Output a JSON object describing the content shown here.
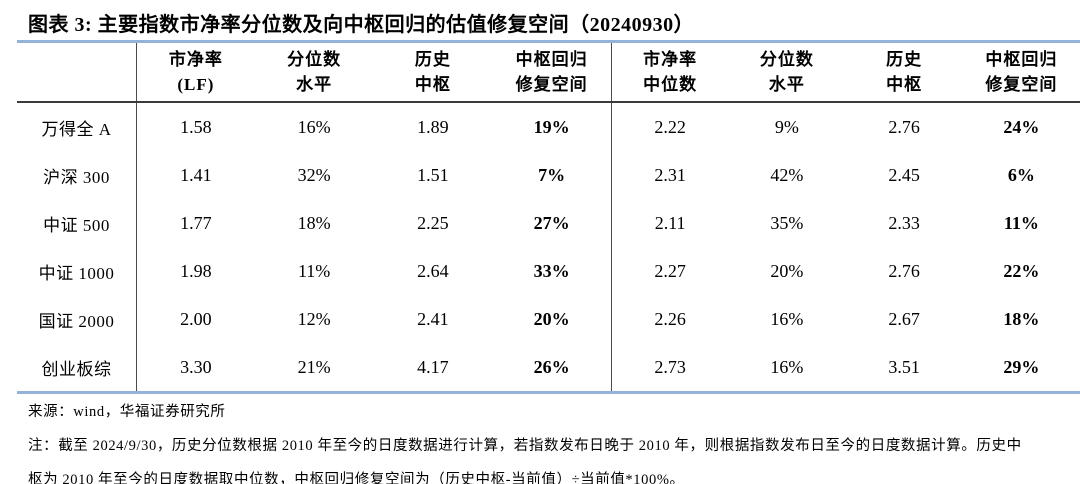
{
  "title": "图表 3: 主要指数市净率分位数及向中枢回归的估值修复空间（20240930）",
  "table": {
    "columns": [
      {
        "line1": "市净率",
        "line2": "(LF)"
      },
      {
        "line1": "分位数",
        "line2": "水平"
      },
      {
        "line1": "历史",
        "line2": "中枢"
      },
      {
        "line1": "中枢回归",
        "line2": "修复空间"
      },
      {
        "line1": "市净率",
        "line2": "中位数"
      },
      {
        "line1": "分位数",
        "line2": "水平"
      },
      {
        "line1": "历史",
        "line2": "中枢"
      },
      {
        "line1": "中枢回归",
        "line2": "修复空间"
      }
    ],
    "rows": [
      {
        "label": "万得全 A",
        "values": [
          "1.58",
          "16%",
          "1.89",
          "19%",
          "2.22",
          "9%",
          "2.76",
          "24%"
        ]
      },
      {
        "label": "沪深 300",
        "values": [
          "1.41",
          "32%",
          "1.51",
          "7%",
          "2.31",
          "42%",
          "2.45",
          "6%"
        ]
      },
      {
        "label": "中证 500",
        "values": [
          "1.77",
          "18%",
          "2.25",
          "27%",
          "2.11",
          "35%",
          "2.33",
          "11%"
        ]
      },
      {
        "label": "中证 1000",
        "values": [
          "1.98",
          "11%",
          "2.64",
          "33%",
          "2.27",
          "20%",
          "2.76",
          "22%"
        ]
      },
      {
        "label": "国证 2000",
        "values": [
          "2.00",
          "12%",
          "2.41",
          "20%",
          "2.26",
          "16%",
          "2.67",
          "18%"
        ]
      },
      {
        "label": "创业板综",
        "values": [
          "3.30",
          "21%",
          "4.17",
          "26%",
          "2.73",
          "16%",
          "3.51",
          "29%"
        ]
      }
    ]
  },
  "footer": {
    "source": "来源：wind，华福证券研究所",
    "note_line1": "注：截至 2024/9/30，历史分位数根据 2010 年至今的日度数据进行计算，若指数发布日晚于 2010 年，则根据指数发布日至今的日度数据计算。历史中",
    "note_line2": "枢为 2010 年至今的日度数据取中位数，中枢回归修复空间为（历史中枢-当前值）÷当前值*100%。"
  },
  "colors": {
    "accent_line": "#95B3D7",
    "dark_line": "#3a3a3a",
    "text": "#000000"
  }
}
